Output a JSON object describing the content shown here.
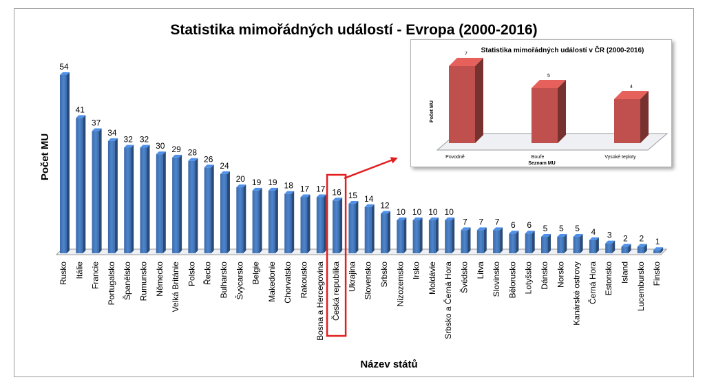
{
  "chart_data": [
    {
      "type": "bar",
      "title": "Statistika mimořádných událostí - Evropa (2000-2016)",
      "xlabel": "Název států",
      "ylabel": "Počet MU",
      "ylim": [
        0,
        60
      ],
      "grid": false,
      "legend": "none",
      "highlighted_category": "Česká republika",
      "bar_color": "#3f74ba",
      "highlight_color": "#e21e1e",
      "categories": [
        "Rusko",
        "Itálie",
        "Francie",
        "Portugalsko",
        "Španělsko",
        "Rumunsko",
        "Německo",
        "Velká Británie",
        "Polsko",
        "Řecko",
        "Bulharsko",
        "Švýcarsko",
        "Belgie",
        "Makedonie",
        "Chorvatsko",
        "Rakousko",
        "Bosna a Hercegovina",
        "Česká republika",
        "Ukrajina",
        "Slovensko",
        "Srbsko",
        "Nizozemsko",
        "Irsko",
        "Moldávie",
        "Srbsko a Černá Hora",
        "Švédsko",
        "Litva",
        "Slovinsko",
        "Bělorusko",
        "Lotyšsko",
        "Dánsko",
        "Norsko",
        "Kanárské ostrovy",
        "Černá Hora",
        "Estonsko",
        "Island",
        "Lucembursko",
        "Finsko"
      ],
      "values": [
        54,
        41,
        37,
        34,
        32,
        32,
        30,
        29,
        28,
        26,
        24,
        20,
        19,
        19,
        18,
        17,
        17,
        16,
        15,
        14,
        12,
        10,
        10,
        10,
        10,
        7,
        7,
        7,
        6,
        6,
        5,
        5,
        5,
        4,
        3,
        2,
        2,
        1
      ]
    },
    {
      "type": "bar",
      "title": "Statistika mimořádných událostí v ČR (2000-2016)",
      "xlabel": "Seznam MU",
      "ylabel": "Počet MU",
      "ylim": [
        0,
        8
      ],
      "grid": false,
      "legend": "none",
      "bar_color": "#c0504d",
      "categories": [
        "Povodně",
        "Bouře",
        "Vysoké teploty"
      ],
      "values": [
        7,
        5,
        4
      ]
    }
  ]
}
